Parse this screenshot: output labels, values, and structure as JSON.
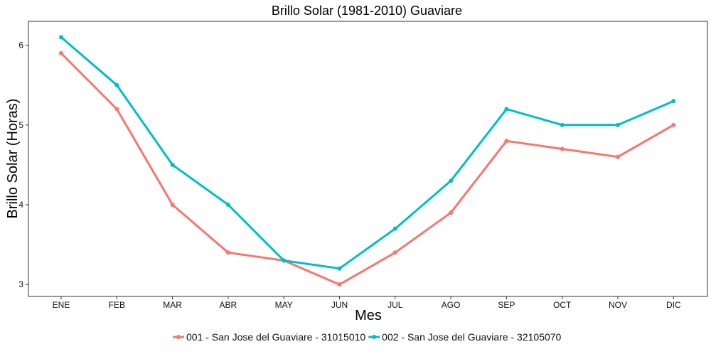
{
  "chart_data": {
    "type": "line",
    "title": "Brillo Solar (1981-2010)  Guaviare",
    "xlabel": "Mes",
    "ylabel": "Brillo Solar (Horas)",
    "categories": [
      "ENE",
      "FEB",
      "MAR",
      "ABR",
      "MAY",
      "JUN",
      "JUL",
      "AGO",
      "SEP",
      "OCT",
      "NOV",
      "DIC"
    ],
    "yticks": [
      3,
      4,
      5,
      6
    ],
    "ylim": [
      2.85,
      6.3
    ],
    "grid": false,
    "legend_position": "bottom",
    "series": [
      {
        "name": "001 - San Jose del Guaviare - 31015010",
        "color": "#F8766D",
        "values": [
          5.9,
          5.2,
          4.0,
          3.4,
          3.3,
          3.0,
          3.4,
          3.9,
          4.8,
          4.7,
          4.6,
          5.0
        ]
      },
      {
        "name": "002 - San Jose del Guaviare - 32105070",
        "color": "#00BFC4",
        "values": [
          6.1,
          5.5,
          4.5,
          4.0,
          3.3,
          3.2,
          3.7,
          4.3,
          5.2,
          5.0,
          5.0,
          5.3
        ]
      }
    ]
  }
}
